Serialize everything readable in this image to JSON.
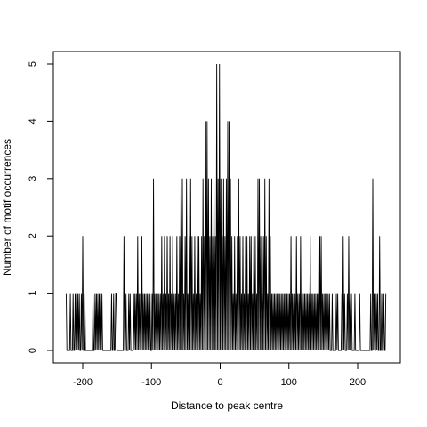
{
  "chart_data": {
    "type": "line",
    "line_style": "step-histogram",
    "xlabel": "Distance to peak centre",
    "ylabel": "Number of motif occurrences",
    "xlim": [
      -235,
      245
    ],
    "ylim": [
      0,
      5
    ],
    "xticks": [
      -200,
      -100,
      0,
      100,
      200
    ],
    "xtick_labels": [
      "-200",
      "-100",
      "0",
      "100",
      "200"
    ],
    "yticks": [
      0,
      1,
      2,
      3,
      4,
      5
    ],
    "ytick_labels": [
      "0",
      "1",
      "2",
      "3",
      "4",
      "5"
    ],
    "grid": false,
    "line_color": "#000000",
    "x_range": [
      -224,
      241
    ],
    "nonzero_points": [
      [
        -224,
        1
      ],
      [
        -218,
        1
      ],
      [
        -214,
        1
      ],
      [
        -211,
        1
      ],
      [
        -209,
        1
      ],
      [
        -207,
        1
      ],
      [
        -205,
        1
      ],
      [
        -202,
        1
      ],
      [
        -200,
        2
      ],
      [
        -197,
        1
      ],
      [
        -185,
        1
      ],
      [
        -182,
        1
      ],
      [
        -180,
        1
      ],
      [
        -178,
        1
      ],
      [
        -176,
        1
      ],
      [
        -174,
        1
      ],
      [
        -172,
        1
      ],
      [
        -158,
        1
      ],
      [
        -155,
        1
      ],
      [
        -152,
        1
      ],
      [
        -151,
        1
      ],
      [
        -140,
        2
      ],
      [
        -137,
        1
      ],
      [
        -133,
        1
      ],
      [
        -131,
        1
      ],
      [
        -126,
        1
      ],
      [
        -124,
        1
      ],
      [
        -122,
        1
      ],
      [
        -120,
        2
      ],
      [
        -118,
        1
      ],
      [
        -116,
        1
      ],
      [
        -114,
        2
      ],
      [
        -112,
        1
      ],
      [
        -110,
        1
      ],
      [
        -108,
        1
      ],
      [
        -106,
        1
      ],
      [
        -104,
        1
      ],
      [
        -102,
        1
      ],
      [
        -99,
        1
      ],
      [
        -97,
        3
      ],
      [
        -95,
        1
      ],
      [
        -93,
        1
      ],
      [
        -91,
        1
      ],
      [
        -89,
        1
      ],
      [
        -87,
        1
      ],
      [
        -85,
        2
      ],
      [
        -83,
        1
      ],
      [
        -81,
        2
      ],
      [
        -79,
        1
      ],
      [
        -77,
        2
      ],
      [
        -75,
        1
      ],
      [
        -73,
        2
      ],
      [
        -71,
        1
      ],
      [
        -69,
        2
      ],
      [
        -67,
        1
      ],
      [
        -65,
        1
      ],
      [
        -63,
        2
      ],
      [
        -61,
        1
      ],
      [
        -59,
        2
      ],
      [
        -57,
        3
      ],
      [
        -55,
        3
      ],
      [
        -53,
        1
      ],
      [
        -51,
        2
      ],
      [
        -49,
        3
      ],
      [
        -47,
        1
      ],
      [
        -45,
        2
      ],
      [
        -43,
        3
      ],
      [
        -41,
        2
      ],
      [
        -39,
        1
      ],
      [
        -37,
        2
      ],
      [
        -35,
        1
      ],
      [
        -33,
        2
      ],
      [
        -31,
        2
      ],
      [
        -29,
        1
      ],
      [
        -27,
        2
      ],
      [
        -25,
        3
      ],
      [
        -23,
        2
      ],
      [
        -21,
        4
      ],
      [
        -19,
        4
      ],
      [
        -17,
        3
      ],
      [
        -15,
        2
      ],
      [
        -13,
        3
      ],
      [
        -11,
        2
      ],
      [
        -9,
        3
      ],
      [
        -7,
        2
      ],
      [
        -5,
        5
      ],
      [
        -3,
        3
      ],
      [
        -1,
        5
      ],
      [
        1,
        3
      ],
      [
        3,
        2
      ],
      [
        5,
        3
      ],
      [
        7,
        2
      ],
      [
        9,
        3
      ],
      [
        11,
        4
      ],
      [
        13,
        4
      ],
      [
        15,
        3
      ],
      [
        17,
        2
      ],
      [
        19,
        1
      ],
      [
        21,
        2
      ],
      [
        23,
        1
      ],
      [
        25,
        2
      ],
      [
        27,
        3
      ],
      [
        29,
        2
      ],
      [
        31,
        1
      ],
      [
        33,
        2
      ],
      [
        35,
        1
      ],
      [
        37,
        2
      ],
      [
        39,
        2
      ],
      [
        41,
        1
      ],
      [
        43,
        2
      ],
      [
        45,
        2
      ],
      [
        47,
        1
      ],
      [
        49,
        2
      ],
      [
        51,
        2
      ],
      [
        53,
        1
      ],
      [
        55,
        3
      ],
      [
        57,
        3
      ],
      [
        59,
        2
      ],
      [
        61,
        1
      ],
      [
        63,
        2
      ],
      [
        65,
        3
      ],
      [
        67,
        2
      ],
      [
        69,
        1
      ],
      [
        71,
        3
      ],
      [
        73,
        2
      ],
      [
        75,
        1
      ],
      [
        77,
        1
      ],
      [
        79,
        1
      ],
      [
        81,
        1
      ],
      [
        83,
        1
      ],
      [
        85,
        1
      ],
      [
        87,
        1
      ],
      [
        89,
        1
      ],
      [
        91,
        1
      ],
      [
        93,
        1
      ],
      [
        95,
        1
      ],
      [
        97,
        1
      ],
      [
        99,
        1
      ],
      [
        101,
        1
      ],
      [
        103,
        2
      ],
      [
        105,
        1
      ],
      [
        107,
        1
      ],
      [
        109,
        1
      ],
      [
        111,
        2
      ],
      [
        113,
        1
      ],
      [
        115,
        1
      ],
      [
        117,
        2
      ],
      [
        119,
        1
      ],
      [
        121,
        1
      ],
      [
        123,
        1
      ],
      [
        125,
        1
      ],
      [
        127,
        1
      ],
      [
        129,
        1
      ],
      [
        131,
        2
      ],
      [
        133,
        1
      ],
      [
        135,
        1
      ],
      [
        137,
        1
      ],
      [
        139,
        1
      ],
      [
        141,
        1
      ],
      [
        143,
        1
      ],
      [
        145,
        2
      ],
      [
        147,
        2
      ],
      [
        149,
        1
      ],
      [
        151,
        1
      ],
      [
        153,
        1
      ],
      [
        155,
        1
      ],
      [
        157,
        1
      ],
      [
        159,
        1
      ],
      [
        163,
        1
      ],
      [
        169,
        1
      ],
      [
        171,
        1
      ],
      [
        177,
        1
      ],
      [
        179,
        2
      ],
      [
        181,
        1
      ],
      [
        185,
        1
      ],
      [
        187,
        2
      ],
      [
        189,
        1
      ],
      [
        191,
        1
      ],
      [
        196,
        1
      ],
      [
        203,
        1
      ],
      [
        219,
        1
      ],
      [
        222,
        3
      ],
      [
        224,
        1
      ],
      [
        227,
        1
      ],
      [
        229,
        1
      ],
      [
        232,
        2
      ],
      [
        235,
        1
      ],
      [
        238,
        1
      ],
      [
        241,
        1
      ]
    ]
  }
}
